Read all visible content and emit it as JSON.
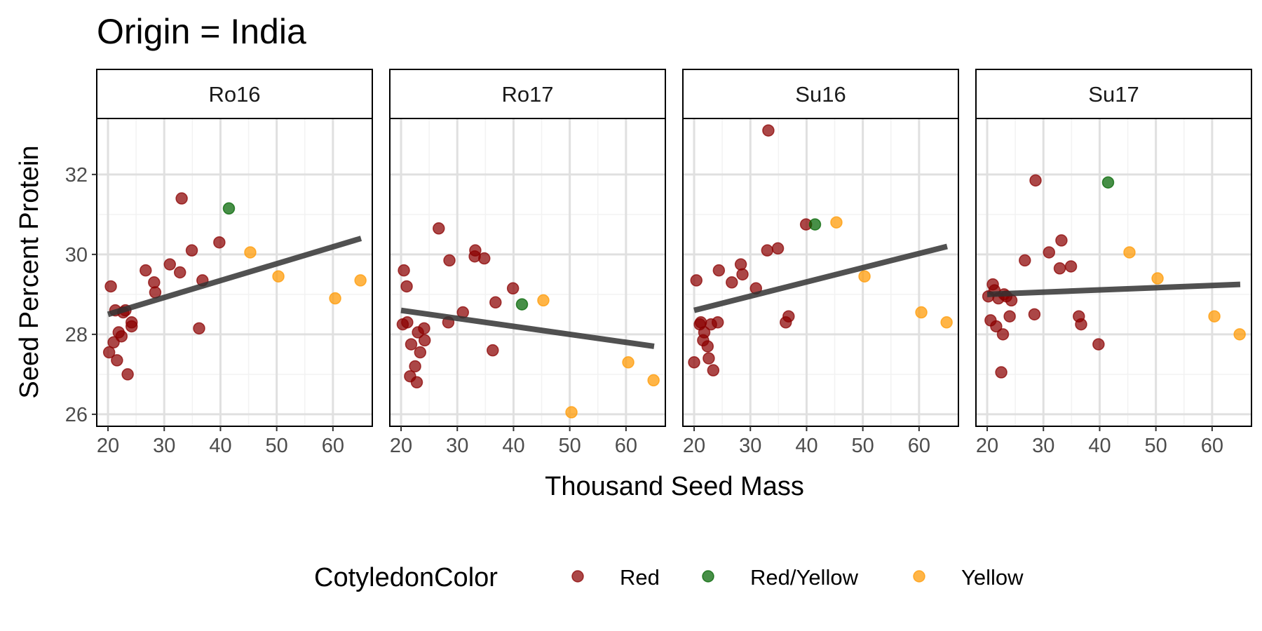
{
  "chart_data": {
    "type": "scatter",
    "title": "Origin = India",
    "xlabel": "Thousand Seed Mass",
    "ylabel": "Seed Percent Protein",
    "xlim": [
      18,
      67
    ],
    "ylim": [
      25.7,
      33.4
    ],
    "x_ticks": [
      20,
      30,
      40,
      50,
      60
    ],
    "y_ticks": [
      26,
      28,
      30,
      32
    ],
    "grid": true,
    "legend": {
      "title": "CotyledonColor",
      "position": "bottom",
      "entries": [
        {
          "label": "Red",
          "color": "#8b0000"
        },
        {
          "label": "Red/Yellow",
          "color": "#006400"
        },
        {
          "label": "Yellow",
          "color": "#ff9900"
        }
      ]
    },
    "colors": {
      "Red": "#8b0000",
      "Red/Yellow": "#006400",
      "Yellow": "#ff9900",
      "trend": "#333333"
    },
    "panels": [
      {
        "name": "Ro16",
        "trend": {
          "x": [
            20,
            65
          ],
          "y": [
            28.5,
            30.4
          ]
        },
        "points": [
          {
            "x": 20.5,
            "y": 29.2,
            "c": "Red"
          },
          {
            "x": 21,
            "y": 27.8,
            "c": "Red"
          },
          {
            "x": 21.3,
            "y": 28.6,
            "c": "Red"
          },
          {
            "x": 20.2,
            "y": 27.55,
            "c": "Red"
          },
          {
            "x": 21.6,
            "y": 27.35,
            "c": "Red"
          },
          {
            "x": 21.9,
            "y": 28.05,
            "c": "Red"
          },
          {
            "x": 22.4,
            "y": 27.95,
            "c": "Red"
          },
          {
            "x": 22.7,
            "y": 28.55,
            "c": "Red"
          },
          {
            "x": 23.1,
            "y": 28.6,
            "c": "Red"
          },
          {
            "x": 23.5,
            "y": 27.0,
            "c": "Red"
          },
          {
            "x": 24.2,
            "y": 28.3,
            "c": "Red"
          },
          {
            "x": 24.2,
            "y": 28.2,
            "c": "Red"
          },
          {
            "x": 26.7,
            "y": 29.6,
            "c": "Red"
          },
          {
            "x": 28.2,
            "y": 29.3,
            "c": "Red"
          },
          {
            "x": 28.4,
            "y": 29.05,
            "c": "Red"
          },
          {
            "x": 31,
            "y": 29.75,
            "c": "Red"
          },
          {
            "x": 32.8,
            "y": 29.55,
            "c": "Red"
          },
          {
            "x": 33.1,
            "y": 31.4,
            "c": "Red"
          },
          {
            "x": 34.9,
            "y": 30.1,
            "c": "Red"
          },
          {
            "x": 36.2,
            "y": 28.15,
            "c": "Red"
          },
          {
            "x": 36.8,
            "y": 29.35,
            "c": "Red"
          },
          {
            "x": 39.8,
            "y": 30.3,
            "c": "Red"
          },
          {
            "x": 41.5,
            "y": 31.15,
            "c": "Red/Yellow"
          },
          {
            "x": 45.3,
            "y": 30.05,
            "c": "Yellow"
          },
          {
            "x": 50.3,
            "y": 29.45,
            "c": "Yellow"
          },
          {
            "x": 60.4,
            "y": 28.9,
            "c": "Yellow"
          },
          {
            "x": 64.9,
            "y": 29.35,
            "c": "Yellow"
          }
        ]
      },
      {
        "name": "Ro17",
        "trend": {
          "x": [
            20,
            65
          ],
          "y": [
            28.6,
            27.7
          ]
        },
        "points": [
          {
            "x": 20.3,
            "y": 28.25,
            "c": "Red"
          },
          {
            "x": 20.5,
            "y": 29.6,
            "c": "Red"
          },
          {
            "x": 21,
            "y": 29.2,
            "c": "Red"
          },
          {
            "x": 21.1,
            "y": 28.3,
            "c": "Red"
          },
          {
            "x": 21.6,
            "y": 26.95,
            "c": "Red"
          },
          {
            "x": 21.8,
            "y": 27.75,
            "c": "Red"
          },
          {
            "x": 22.5,
            "y": 27.2,
            "c": "Red"
          },
          {
            "x": 22.8,
            "y": 26.8,
            "c": "Red"
          },
          {
            "x": 23,
            "y": 28.05,
            "c": "Red"
          },
          {
            "x": 23.4,
            "y": 27.55,
            "c": "Red"
          },
          {
            "x": 24.1,
            "y": 28.15,
            "c": "Red"
          },
          {
            "x": 24.2,
            "y": 27.85,
            "c": "Red"
          },
          {
            "x": 26.7,
            "y": 30.65,
            "c": "Red"
          },
          {
            "x": 28.4,
            "y": 28.3,
            "c": "Red"
          },
          {
            "x": 28.6,
            "y": 29.85,
            "c": "Red"
          },
          {
            "x": 31,
            "y": 28.55,
            "c": "Red"
          },
          {
            "x": 33.1,
            "y": 29.95,
            "c": "Red"
          },
          {
            "x": 33.2,
            "y": 30.1,
            "c": "Red"
          },
          {
            "x": 34.8,
            "y": 29.9,
            "c": "Red"
          },
          {
            "x": 36.3,
            "y": 27.6,
            "c": "Red"
          },
          {
            "x": 36.8,
            "y": 28.8,
            "c": "Red"
          },
          {
            "x": 39.9,
            "y": 29.15,
            "c": "Red"
          },
          {
            "x": 41.5,
            "y": 28.75,
            "c": "Red/Yellow"
          },
          {
            "x": 45.3,
            "y": 28.85,
            "c": "Yellow"
          },
          {
            "x": 50.3,
            "y": 26.05,
            "c": "Yellow"
          },
          {
            "x": 60.4,
            "y": 27.3,
            "c": "Yellow"
          },
          {
            "x": 64.9,
            "y": 26.85,
            "c": "Yellow"
          }
        ]
      },
      {
        "name": "Su16",
        "trend": {
          "x": [
            20,
            65
          ],
          "y": [
            28.6,
            30.2
          ]
        },
        "points": [
          {
            "x": 20,
            "y": 27.3,
            "c": "Red"
          },
          {
            "x": 20.4,
            "y": 29.35,
            "c": "Red"
          },
          {
            "x": 21,
            "y": 28.25,
            "c": "Red"
          },
          {
            "x": 21.2,
            "y": 28.3,
            "c": "Red"
          },
          {
            "x": 21.6,
            "y": 27.85,
            "c": "Red"
          },
          {
            "x": 21.8,
            "y": 28.05,
            "c": "Red"
          },
          {
            "x": 22.4,
            "y": 27.7,
            "c": "Red"
          },
          {
            "x": 22.6,
            "y": 27.4,
            "c": "Red"
          },
          {
            "x": 23,
            "y": 28.25,
            "c": "Red"
          },
          {
            "x": 23.4,
            "y": 27.1,
            "c": "Red"
          },
          {
            "x": 24.2,
            "y": 28.3,
            "c": "Red"
          },
          {
            "x": 24.4,
            "y": 29.6,
            "c": "Red"
          },
          {
            "x": 26.7,
            "y": 29.3,
            "c": "Red"
          },
          {
            "x": 28.3,
            "y": 29.75,
            "c": "Red"
          },
          {
            "x": 28.6,
            "y": 29.5,
            "c": "Red"
          },
          {
            "x": 31,
            "y": 29.15,
            "c": "Red"
          },
          {
            "x": 33,
            "y": 30.1,
            "c": "Red"
          },
          {
            "x": 33.2,
            "y": 33.1,
            "c": "Red"
          },
          {
            "x": 34.9,
            "y": 30.15,
            "c": "Red"
          },
          {
            "x": 36.3,
            "y": 28.3,
            "c": "Red"
          },
          {
            "x": 36.8,
            "y": 28.45,
            "c": "Red"
          },
          {
            "x": 39.9,
            "y": 30.75,
            "c": "Red"
          },
          {
            "x": 41.5,
            "y": 30.75,
            "c": "Red/Yellow"
          },
          {
            "x": 45.3,
            "y": 30.8,
            "c": "Yellow"
          },
          {
            "x": 50.3,
            "y": 29.45,
            "c": "Yellow"
          },
          {
            "x": 60.4,
            "y": 28.55,
            "c": "Yellow"
          },
          {
            "x": 64.9,
            "y": 28.3,
            "c": "Yellow"
          }
        ]
      },
      {
        "name": "Su17",
        "trend": {
          "x": [
            20,
            65
          ],
          "y": [
            29.0,
            29.25
          ]
        },
        "points": [
          {
            "x": 20.2,
            "y": 28.95,
            "c": "Red"
          },
          {
            "x": 20.6,
            "y": 28.35,
            "c": "Red"
          },
          {
            "x": 21,
            "y": 29.25,
            "c": "Red"
          },
          {
            "x": 21.3,
            "y": 29.1,
            "c": "Red"
          },
          {
            "x": 21.6,
            "y": 28.2,
            "c": "Red"
          },
          {
            "x": 22,
            "y": 28.9,
            "c": "Red"
          },
          {
            "x": 22.5,
            "y": 27.05,
            "c": "Red"
          },
          {
            "x": 22.8,
            "y": 28.0,
            "c": "Red"
          },
          {
            "x": 23,
            "y": 29.0,
            "c": "Red"
          },
          {
            "x": 23.4,
            "y": 28.95,
            "c": "Red"
          },
          {
            "x": 24,
            "y": 28.45,
            "c": "Red"
          },
          {
            "x": 24.3,
            "y": 28.85,
            "c": "Red"
          },
          {
            "x": 26.7,
            "y": 29.85,
            "c": "Red"
          },
          {
            "x": 28.4,
            "y": 28.5,
            "c": "Red"
          },
          {
            "x": 28.6,
            "y": 31.85,
            "c": "Red"
          },
          {
            "x": 31,
            "y": 30.05,
            "c": "Red"
          },
          {
            "x": 32.9,
            "y": 29.65,
            "c": "Red"
          },
          {
            "x": 33.2,
            "y": 30.35,
            "c": "Red"
          },
          {
            "x": 34.9,
            "y": 29.7,
            "c": "Red"
          },
          {
            "x": 36.3,
            "y": 28.45,
            "c": "Red"
          },
          {
            "x": 36.7,
            "y": 28.25,
            "c": "Red"
          },
          {
            "x": 39.8,
            "y": 27.75,
            "c": "Red"
          },
          {
            "x": 41.5,
            "y": 31.8,
            "c": "Red/Yellow"
          },
          {
            "x": 45.3,
            "y": 30.05,
            "c": "Yellow"
          },
          {
            "x": 50.3,
            "y": 29.4,
            "c": "Yellow"
          },
          {
            "x": 60.4,
            "y": 28.45,
            "c": "Yellow"
          },
          {
            "x": 64.9,
            "y": 28.0,
            "c": "Yellow"
          }
        ]
      }
    ]
  }
}
